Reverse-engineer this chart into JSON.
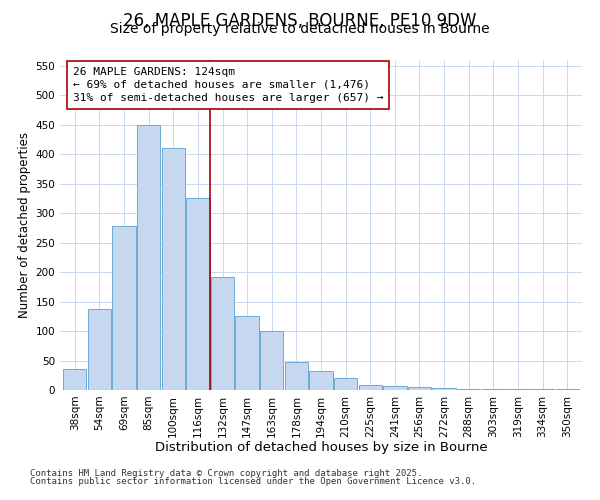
{
  "title": "26, MAPLE GARDENS, BOURNE, PE10 9DW",
  "subtitle": "Size of property relative to detached houses in Bourne",
  "xlabel": "Distribution of detached houses by size in Bourne",
  "ylabel": "Number of detached properties",
  "categories": [
    "38sqm",
    "54sqm",
    "69sqm",
    "85sqm",
    "100sqm",
    "116sqm",
    "132sqm",
    "147sqm",
    "163sqm",
    "178sqm",
    "194sqm",
    "210sqm",
    "225sqm",
    "241sqm",
    "256sqm",
    "272sqm",
    "288sqm",
    "303sqm",
    "319sqm",
    "334sqm",
    "350sqm"
  ],
  "values": [
    35,
    137,
    278,
    450,
    410,
    325,
    192,
    125,
    100,
    47,
    32,
    20,
    8,
    7,
    5,
    3,
    2,
    1,
    1,
    1,
    2
  ],
  "bar_color": "#c5d8f0",
  "bar_edge_color": "#6aaad4",
  "vline_x": 5.5,
  "vline_color": "#aa0000",
  "annotation_text": "26 MAPLE GARDENS: 124sqm\n← 69% of detached houses are smaller (1,476)\n31% of semi-detached houses are larger (657) →",
  "annotation_box_color": "#ffffff",
  "annotation_box_edge": "#aa0000",
  "ylim": [
    0,
    560
  ],
  "yticks": [
    0,
    50,
    100,
    150,
    200,
    250,
    300,
    350,
    400,
    450,
    500,
    550
  ],
  "grid_color": "#c8d8ee",
  "footer1": "Contains HM Land Registry data © Crown copyright and database right 2025.",
  "footer2": "Contains public sector information licensed under the Open Government Licence v3.0.",
  "title_fontsize": 12,
  "subtitle_fontsize": 10,
  "xlabel_fontsize": 9.5,
  "ylabel_fontsize": 8.5,
  "tick_fontsize": 7.5,
  "annotation_fontsize": 8,
  "footer_fontsize": 6.5
}
